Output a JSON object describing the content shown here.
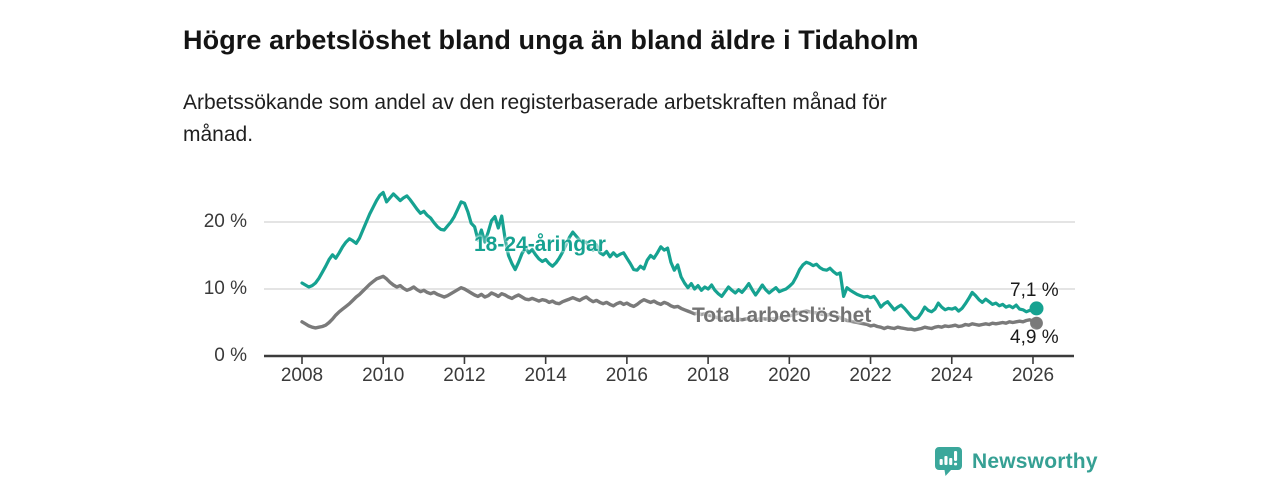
{
  "header": {
    "title": "Högre arbetslöshet bland unga än bland äldre i Tidaholm",
    "subtitle": "Arbetssökande som andel av den registerbaserade arbetskraften månad för månad."
  },
  "chart_data": {
    "type": "line",
    "title": "Högre arbetslöshet bland unga än bland äldre i Tidaholm",
    "subtitle": "Arbetssökande som andel av den registerbaserade arbetskraften månad för månad.",
    "x_start": "2008-01",
    "x_end": "2026-02",
    "x_interval": "month",
    "x_ticks": [
      "2008",
      "2010",
      "2012",
      "2014",
      "2016",
      "2018",
      "2020",
      "2022",
      "2024",
      "2026"
    ],
    "y_ticks": [
      {
        "value": 0,
        "label": "0 %"
      },
      {
        "value": 10,
        "label": "10 %"
      },
      {
        "value": 20,
        "label": "20 %"
      }
    ],
    "ylim": [
      0,
      26
    ],
    "grid": "horizontal",
    "legend_position": "inline-labels",
    "series": [
      {
        "name": "18-24-åringar",
        "color": "#16a291",
        "end_label": "7,1 %",
        "end_value": 7.1,
        "values": [
          10.9,
          10.6,
          10.3,
          10.5,
          10.9,
          11.6,
          12.5,
          13.4,
          14.4,
          15.1,
          14.6,
          15.4,
          16.3,
          17.0,
          17.5,
          17.2,
          16.8,
          17.6,
          18.8,
          20.0,
          21.2,
          22.2,
          23.2,
          24.0,
          24.4,
          23.0,
          23.6,
          24.2,
          23.7,
          23.2,
          23.6,
          23.9,
          23.3,
          22.6,
          21.9,
          21.3,
          21.6,
          21.0,
          20.6,
          19.9,
          19.3,
          18.9,
          18.8,
          19.4,
          20.0,
          20.8,
          21.9,
          23.0,
          22.8,
          21.5,
          19.8,
          19.3,
          17.3,
          18.8,
          17.0,
          18.5,
          20.2,
          20.8,
          19.1,
          20.9,
          17.5,
          15.0,
          13.8,
          12.9,
          14.0,
          15.3,
          16.1,
          15.4,
          15.9,
          15.1,
          14.5,
          14.1,
          14.4,
          13.8,
          13.4,
          13.9,
          14.6,
          15.5,
          16.6,
          17.7,
          18.5,
          17.9,
          17.3,
          16.9,
          17.0,
          16.2,
          15.8,
          16.6,
          15.4,
          15.1,
          15.6,
          14.8,
          15.4,
          14.9,
          15.2,
          15.4,
          14.6,
          13.8,
          12.9,
          12.8,
          13.4,
          13.0,
          14.3,
          15.0,
          14.6,
          15.4,
          16.3,
          15.8,
          16.1,
          14.0,
          12.8,
          13.6,
          11.8,
          10.9,
          10.2,
          10.8,
          10.0,
          10.5,
          9.8,
          10.3,
          10.0,
          10.6,
          9.8,
          9.3,
          8.9,
          9.6,
          10.3,
          9.8,
          9.4,
          9.9,
          9.5,
          10.1,
          10.8,
          9.9,
          9.1,
          9.8,
          10.6,
          9.9,
          9.4,
          9.8,
          10.2,
          9.6,
          9.8,
          10.0,
          10.4,
          10.9,
          11.8,
          12.9,
          13.6,
          14.0,
          13.8,
          13.5,
          13.7,
          13.2,
          12.9,
          12.8,
          13.1,
          12.6,
          12.2,
          12.4,
          8.9,
          10.2,
          9.8,
          9.5,
          9.2,
          9.0,
          8.8,
          8.9,
          8.7,
          8.9,
          8.2,
          7.3,
          7.8,
          8.1,
          7.5,
          6.9,
          7.3,
          7.6,
          7.1,
          6.5,
          5.9,
          5.5,
          5.7,
          6.4,
          7.3,
          6.8,
          6.6,
          7.0,
          7.9,
          7.3,
          6.9,
          7.1,
          7.0,
          7.2,
          6.7,
          7.1,
          7.8,
          8.6,
          9.5,
          9.0,
          8.4,
          8.0,
          8.5,
          8.1,
          7.7,
          7.9,
          7.5,
          7.7,
          7.3,
          7.5,
          7.2,
          7.6,
          7.0,
          6.9,
          6.6,
          6.8,
          6.7,
          7.1
        ]
      },
      {
        "name": "Total arbetslöshet",
        "color": "#7a7a7a",
        "end_label": "4,9 %",
        "end_value": 4.9,
        "values": [
          5.1,
          4.8,
          4.5,
          4.3,
          4.2,
          4.3,
          4.4,
          4.6,
          5.0,
          5.5,
          6.1,
          6.6,
          7.0,
          7.4,
          7.8,
          8.3,
          8.8,
          9.2,
          9.7,
          10.2,
          10.7,
          11.1,
          11.5,
          11.7,
          11.9,
          11.5,
          11.0,
          10.6,
          10.3,
          10.5,
          10.1,
          9.8,
          10.0,
          10.3,
          9.9,
          9.6,
          9.8,
          9.5,
          9.3,
          9.5,
          9.2,
          9.0,
          8.8,
          9.0,
          9.3,
          9.6,
          9.9,
          10.2,
          10.0,
          9.7,
          9.4,
          9.1,
          8.9,
          9.2,
          8.8,
          9.0,
          9.4,
          9.2,
          8.9,
          9.3,
          9.1,
          8.8,
          8.6,
          8.9,
          9.1,
          8.8,
          8.5,
          8.4,
          8.6,
          8.4,
          8.2,
          8.4,
          8.3,
          8.0,
          8.2,
          7.9,
          7.8,
          8.1,
          8.3,
          8.5,
          8.7,
          8.5,
          8.3,
          8.6,
          8.8,
          8.4,
          8.1,
          8.3,
          8.0,
          7.8,
          8.0,
          7.7,
          7.5,
          7.8,
          8.0,
          7.7,
          7.9,
          7.6,
          7.4,
          7.7,
          8.1,
          8.4,
          8.2,
          8.0,
          8.2,
          7.9,
          7.7,
          8.0,
          7.8,
          7.5,
          7.3,
          7.4,
          7.1,
          6.9,
          6.7,
          6.5,
          6.3,
          6.4,
          6.2,
          6.3,
          6.1,
          6.0,
          5.8,
          5.7,
          5.6,
          5.7,
          5.6,
          5.5,
          5.4,
          5.5,
          5.4,
          5.5,
          5.6,
          5.5,
          5.4,
          5.5,
          5.6,
          5.5,
          5.6,
          5.5,
          5.6,
          5.7,
          5.8,
          5.9,
          6.0,
          6.1,
          6.3,
          6.5,
          6.6,
          6.7,
          6.6,
          6.5,
          6.4,
          6.3,
          6.2,
          6.1,
          6.2,
          6.0,
          5.9,
          5.7,
          5.5,
          5.3,
          5.2,
          5.1,
          5.0,
          4.9,
          4.8,
          4.7,
          4.5,
          4.6,
          4.4,
          4.3,
          4.1,
          4.3,
          4.2,
          4.1,
          4.3,
          4.2,
          4.1,
          4.0,
          4.0,
          3.9,
          4.0,
          4.1,
          4.3,
          4.2,
          4.1,
          4.3,
          4.4,
          4.3,
          4.5,
          4.4,
          4.5,
          4.6,
          4.4,
          4.5,
          4.7,
          4.6,
          4.8,
          4.7,
          4.6,
          4.7,
          4.8,
          4.7,
          4.9,
          4.8,
          4.9,
          5.0,
          4.9,
          5.1,
          5.0,
          5.1,
          5.2,
          5.1,
          5.3,
          5.4,
          5.2,
          4.9
        ]
      }
    ],
    "colors": {
      "grid": "#dcdcdc",
      "axis": "#3b3b3b",
      "axis_text": "#3a3a3a",
      "youth_line": "#16a291",
      "total_line": "#7a7a7a",
      "total_label_text": "#737373"
    }
  },
  "footer": {
    "brand": "Newsworthy",
    "logo_icon": "bar-chart-speech-bubble-icon",
    "brand_color": "#36a094",
    "icon_color": "#3ba79b"
  }
}
